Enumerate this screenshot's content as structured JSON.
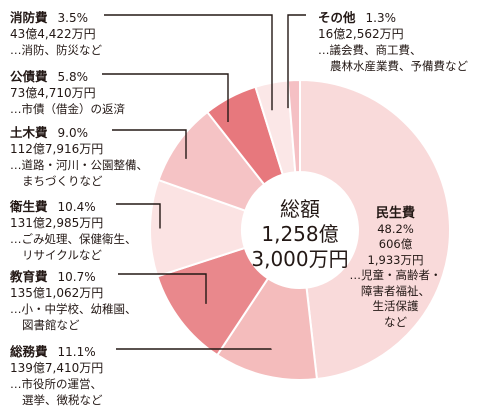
{
  "chart_data": {
    "type": "pie",
    "center_label": {
      "line1": "総額",
      "line2": "1,258億",
      "line3": "3,000万円"
    },
    "colors": {
      "ring_base": "#f7dede",
      "line": "#231815",
      "divider": "#ffffff"
    },
    "slices": [
      {
        "name": "民生費",
        "percent": 48.2,
        "percent_label": "48.2%",
        "amount_line1": "606億",
        "amount_line2": "1,933万円",
        "detail_lines": [
          "…児童・高齢者・",
          "障害者福祉、",
          "生活保護",
          "など"
        ],
        "color": "#f9dada"
      },
      {
        "name": "総務費",
        "percent": 11.1,
        "percent_label": "11.1%",
        "amount": "139億7,410万円",
        "detail_lines": [
          "…市役所の運営、",
          "選挙、徴税など"
        ],
        "color": "#f4bcbc"
      },
      {
        "name": "教育費",
        "percent": 10.7,
        "percent_label": "10.7%",
        "amount": "135億1,062万円",
        "detail_lines": [
          "…小・中学校、幼稚園、",
          "図書館など"
        ],
        "color": "#e9888c"
      },
      {
        "name": "衛生費",
        "percent": 10.4,
        "percent_label": "10.4%",
        "amount": "131億2,985万円",
        "detail_lines": [
          "…ごみ処理、保健衛生、",
          "リサイクルなど"
        ],
        "color": "#fbe3e3"
      },
      {
        "name": "土木費",
        "percent": 9.0,
        "percent_label": "9.0%",
        "amount": "112億7,916万円",
        "detail_lines": [
          "…道路・河川・公園整備、",
          "まちづくりなど"
        ],
        "color": "#f5c3c5"
      },
      {
        "name": "公債費",
        "percent": 5.8,
        "percent_label": "5.8%",
        "amount": "73億4,710万円",
        "detail_lines": [
          "…市債（借金）の返済"
        ],
        "color": "#e7787d"
      },
      {
        "name": "消防費",
        "percent": 3.5,
        "percent_label": "3.5%",
        "amount": "43億4,422万円",
        "detail_lines": [
          "…消防、防災など"
        ],
        "color": "#fbe7e7"
      },
      {
        "name": "その他",
        "percent": 1.3,
        "percent_label": "1.3%",
        "amount": "16億2,562万円",
        "detail_lines": [
          "…議会費、商工費、",
          "農林水産業費、予備費など"
        ],
        "color": "#f5c0c4"
      }
    ]
  }
}
